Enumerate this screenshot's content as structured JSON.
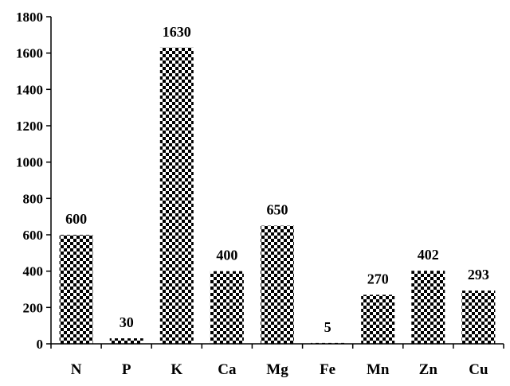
{
  "chart_data": {
    "type": "bar",
    "title": "",
    "xlabel": "",
    "ylabel": "",
    "categories": [
      "N",
      "P",
      "K",
      "Ca",
      "Mg",
      "Fe",
      "Mn",
      "Zn",
      "Cu"
    ],
    "values": [
      600,
      30,
      1630,
      400,
      650,
      5,
      270,
      402,
      293
    ],
    "data_labels": [
      "600",
      "30",
      "1630",
      "400",
      "650",
      "5",
      "270",
      "402",
      "293"
    ],
    "ylim": [
      0,
      1800
    ],
    "yticks": [
      0,
      200,
      400,
      600,
      800,
      1000,
      1200,
      1400,
      1600,
      1800
    ],
    "grid": false,
    "legend": "none",
    "bar_fill": "checkerboard",
    "colors": {
      "pattern_dark": "#000000",
      "pattern_light": "#ffffff",
      "axis": "#000000"
    }
  }
}
